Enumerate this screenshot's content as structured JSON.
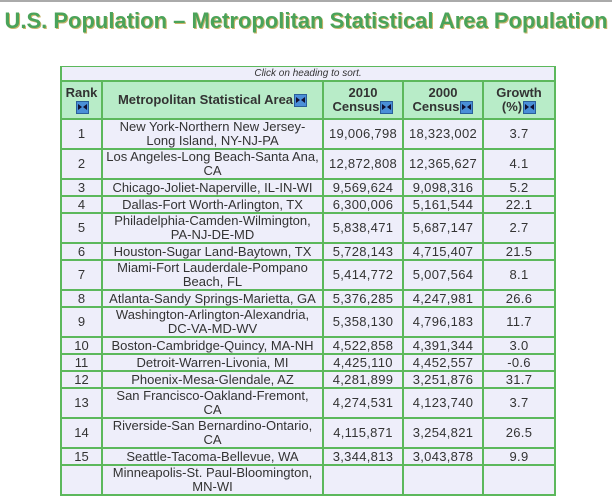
{
  "title": "U.S. Population – Metropolitan Statistical Area Population",
  "table": {
    "caption": "Click on heading to sort.",
    "headers": [
      {
        "line1": "Rank",
        "line2": ""
      },
      {
        "line1": "Metropolitan Statistical Area",
        "line2": ""
      },
      {
        "line1": "2010",
        "line2": "Census"
      },
      {
        "line1": "2000",
        "line2": "Census"
      },
      {
        "line1": "Growth",
        "line2": "(%)"
      }
    ],
    "rows": [
      [
        "1",
        "New York-Northern New Jersey-Long Island, NY-NJ-PA",
        "19,006,798",
        "18,323,002",
        "3.7"
      ],
      [
        "2",
        "Los Angeles-Long Beach-Santa Ana, CA",
        "12,872,808",
        "12,365,627",
        "4.1"
      ],
      [
        "3",
        "Chicago-Joliet-Naperville, IL-IN-WI",
        "9,569,624",
        "9,098,316",
        "5.2"
      ],
      [
        "4",
        "Dallas-Fort Worth-Arlington, TX",
        "6,300,006",
        "5,161,544",
        "22.1"
      ],
      [
        "5",
        "Philadelphia-Camden-Wilmington, PA-NJ-DE-MD",
        "5,838,471",
        "5,687,147",
        "2.7"
      ],
      [
        "6",
        "Houston-Sugar Land-Baytown, TX",
        "5,728,143",
        "4,715,407",
        "21.5"
      ],
      [
        "7",
        "Miami-Fort Lauderdale-Pompano Beach, FL",
        "5,414,772",
        "5,007,564",
        "8.1"
      ],
      [
        "8",
        "Atlanta-Sandy Springs-Marietta, GA",
        "5,376,285",
        "4,247,981",
        "26.6"
      ],
      [
        "9",
        "Washington-Arlington-Alexandria, DC-VA-MD-WV",
        "5,358,130",
        "4,796,183",
        "11.7"
      ],
      [
        "10",
        "Boston-Cambridge-Quincy, MA-NH",
        "4,522,858",
        "4,391,344",
        "3.0"
      ],
      [
        "11",
        "Detroit-Warren-Livonia, MI",
        "4,425,110",
        "4,452,557",
        "-0.6"
      ],
      [
        "12",
        "Phoenix-Mesa-Glendale, AZ",
        "4,281,899",
        "3,251,876",
        "31.7"
      ],
      [
        "13",
        "San Francisco-Oakland-Fremont, CA",
        "4,274,531",
        "4,123,740",
        "3.7"
      ],
      [
        "14",
        "Riverside-San Bernardino-Ontario, CA",
        "4,115,871",
        "3,254,821",
        "26.5"
      ],
      [
        "15",
        "Seattle-Tacoma-Bellevue, WA",
        "3,344,813",
        "3,043,878",
        "9.9"
      ],
      [
        "",
        "Minneapolis-St. Paul-Bloomington, MN-WI",
        "",
        "",
        ""
      ]
    ]
  },
  "icons": {
    "sort": "sort-arrows-icon"
  },
  "colors": {
    "title": "#4aa35a",
    "header_bg": "#b8ecc8",
    "row_bg": "#eeeefa",
    "border": "#5cb85c"
  }
}
